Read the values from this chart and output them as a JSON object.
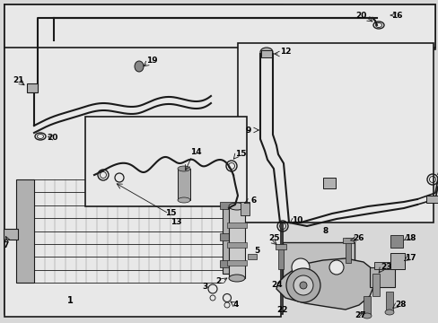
{
  "bg_color": "#d8d8d8",
  "line_color": "#1a1a1a",
  "white": "#ffffff",
  "light_gray": "#e8e8e8",
  "mid_gray": "#b0b0b0",
  "dark_gray": "#555555",
  "fig_w": 4.89,
  "fig_h": 3.6,
  "dpi": 100
}
